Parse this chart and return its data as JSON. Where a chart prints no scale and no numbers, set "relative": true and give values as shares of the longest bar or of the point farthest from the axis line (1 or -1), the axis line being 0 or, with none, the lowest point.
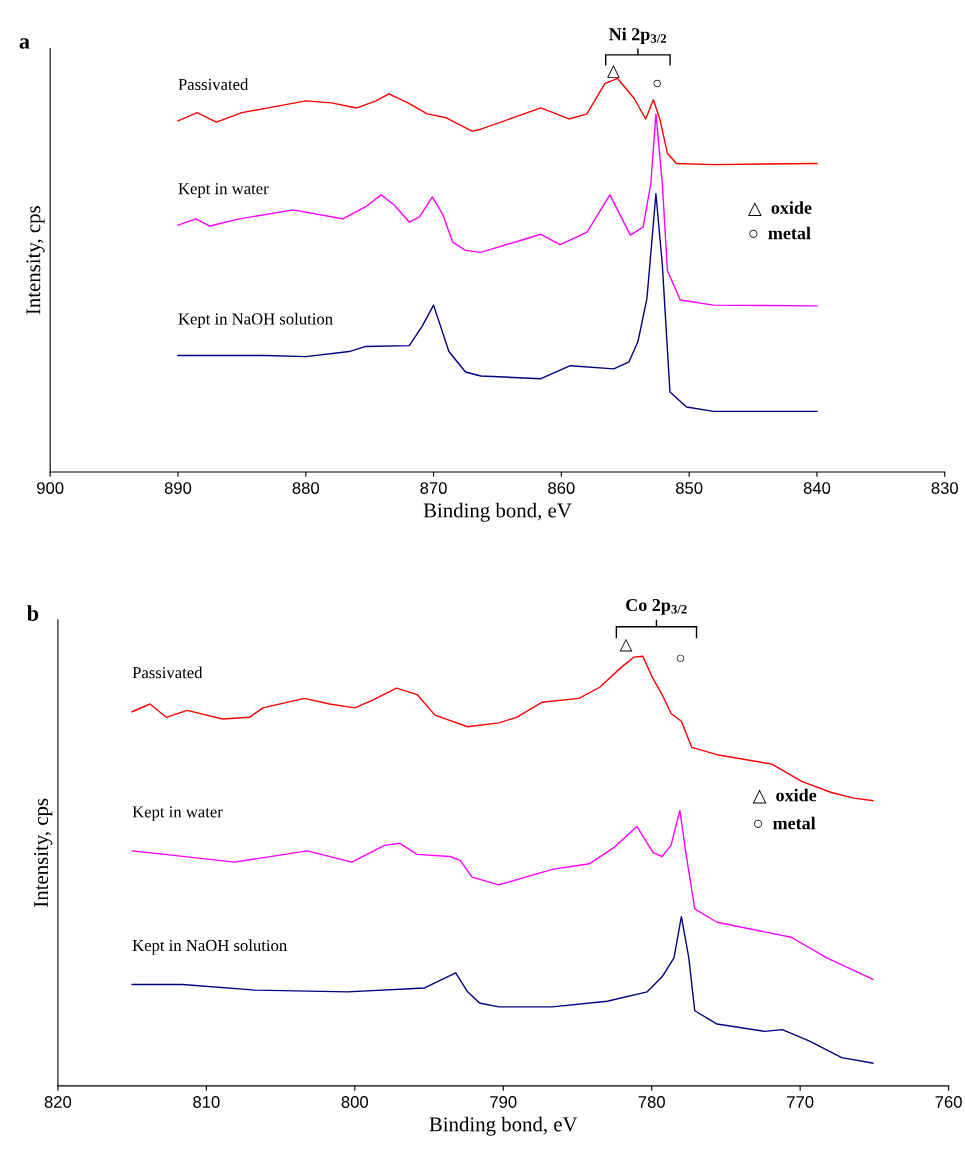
{
  "chart_data": [
    {
      "type": "line",
      "title": "a",
      "xlabel": "Binding bond, eV",
      "ylabel": "Intensity, cps",
      "relative": true,
      "legend": false,
      "xlim": [
        900,
        830
      ],
      "xticks": [
        900,
        890,
        880,
        870,
        860,
        850,
        840,
        830
      ],
      "annotations": [
        "Ni 2p$_{3/2}$",
        "△",
        "○",
        "△  oxide",
        "○  metal"
      ],
      "series": [
        {
          "name": "Passivated",
          "color": "#ff0000",
          "x": [
            890,
            888.5,
            887,
            885,
            882,
            880,
            878,
            876,
            874.5,
            873.5,
            872,
            870.5,
            869,
            867,
            866.3,
            861.6,
            859.4,
            858,
            856.6,
            855.6,
            854.3,
            853.4,
            852.8,
            852.3,
            851.7,
            851,
            848.1,
            840
          ],
          "values": [
            0.892,
            0.913,
            0.889,
            0.913,
            0.931,
            0.943,
            0.938,
            0.925,
            0.943,
            0.961,
            0.938,
            0.91,
            0.9,
            0.866,
            0.871,
            0.925,
            0.897,
            0.91,
            0.987,
            1.0,
            0.949,
            0.897,
            0.946,
            0.897,
            0.81,
            0.784,
            0.781,
            0.784
          ]
        },
        {
          "name": "Kept in water",
          "color": "#ff00ff",
          "x": [
            890,
            888.6,
            887.5,
            885.2,
            881,
            877.9,
            877.1,
            875.3,
            874.1,
            873.1,
            871.9,
            871.1,
            870.1,
            869.3,
            868.5,
            867.5,
            866.3,
            861.6,
            860.1,
            858,
            856.2,
            854.6,
            853.6,
            853,
            852.6,
            852.1,
            851.7,
            850.7,
            848.1,
            840
          ],
          "values": [
            0.627,
            0.643,
            0.625,
            0.643,
            0.666,
            0.648,
            0.643,
            0.674,
            0.704,
            0.679,
            0.635,
            0.648,
            0.699,
            0.656,
            0.584,
            0.563,
            0.558,
            0.604,
            0.578,
            0.609,
            0.704,
            0.602,
            0.622,
            0.733,
            0.91,
            0.733,
            0.512,
            0.437,
            0.424,
            0.422
          ]
        },
        {
          "name": "Kept in NaOH solution",
          "color": "#000080",
          "x": [
            890,
            883.1,
            880,
            876.6,
            875.3,
            871.9,
            870.9,
            870,
            868.8,
            867.5,
            866.3,
            861.6,
            859.3,
            855.9,
            854.7,
            854,
            853.3,
            852.6,
            852.1,
            851.5,
            850.2,
            848.1,
            840
          ],
          "values": [
            0.296,
            0.296,
            0.293,
            0.306,
            0.319,
            0.321,
            0.37,
            0.424,
            0.306,
            0.254,
            0.244,
            0.237,
            0.27,
            0.262,
            0.28,
            0.332,
            0.442,
            0.707,
            0.527,
            0.203,
            0.165,
            0.154,
            0.154
          ]
        }
      ]
    },
    {
      "type": "line",
      "title": "b",
      "xlabel": "Binding bond, eV",
      "ylabel": "Intensity, cps",
      "relative": true,
      "legend": false,
      "xlim": [
        820,
        760
      ],
      "xticks": [
        820,
        810,
        800,
        790,
        780,
        770,
        760
      ],
      "annotations": [
        "Co 2p$_{3/2}$",
        "△",
        "○",
        "△  oxide",
        "○  metal"
      ],
      "series": [
        {
          "name": "Passivated",
          "color": "#ff0000",
          "x": [
            815,
            813.8,
            812.7,
            811.3,
            808.9,
            807.1,
            806.2,
            803.4,
            801.7,
            800,
            798.8,
            797.2,
            795.8,
            794.6,
            792.4,
            790.3,
            789.1,
            787.4,
            784.9,
            783.5,
            782,
            781.2,
            780.6,
            780,
            779.3,
            778.7,
            778,
            777.3,
            775.6,
            771.9,
            769.9,
            767.9,
            766.4,
            765.1
          ],
          "values": [
            0.871,
            0.889,
            0.858,
            0.874,
            0.854,
            0.858,
            0.88,
            0.902,
            0.889,
            0.88,
            0.898,
            0.926,
            0.911,
            0.863,
            0.836,
            0.845,
            0.858,
            0.893,
            0.902,
            0.928,
            0.976,
            0.998,
            1.0,
            0.954,
            0.911,
            0.867,
            0.849,
            0.788,
            0.771,
            0.749,
            0.709,
            0.683,
            0.67,
            0.664
          ]
        },
        {
          "name": "Kept in water",
          "color": "#ff00ff",
          "x": [
            815,
            812.8,
            808.1,
            803.2,
            800.2,
            798,
            797,
            795.8,
            793.6,
            792.9,
            792.1,
            790.3,
            786.7,
            784.2,
            782.5,
            781,
            779.9,
            779.3,
            778.7,
            778.1,
            777.7,
            777.1,
            775.6,
            771.9,
            770.6,
            768.2,
            765.1
          ],
          "values": [
            0.547,
            0.539,
            0.521,
            0.547,
            0.521,
            0.56,
            0.565,
            0.539,
            0.534,
            0.525,
            0.486,
            0.468,
            0.504,
            0.517,
            0.556,
            0.604,
            0.543,
            0.534,
            0.56,
            0.641,
            0.543,
            0.412,
            0.381,
            0.355,
            0.346,
            0.298,
            0.248
          ]
        },
        {
          "name": "Kept in NaOH solution",
          "color": "#000080",
          "x": [
            815,
            811.6,
            806.7,
            800.5,
            795.3,
            793.2,
            792.4,
            791.6,
            790.3,
            786.7,
            783,
            780.3,
            779.3,
            778.5,
            778,
            777.5,
            777.1,
            775.6,
            772.4,
            771.2,
            769.4,
            767.2,
            765.1
          ],
          "values": [
            0.236,
            0.236,
            0.223,
            0.219,
            0.228,
            0.263,
            0.219,
            0.193,
            0.184,
            0.184,
            0.197,
            0.219,
            0.254,
            0.298,
            0.394,
            0.298,
            0.175,
            0.144,
            0.127,
            0.131,
            0.105,
            0.066,
            0.053
          ]
        }
      ]
    }
  ]
}
